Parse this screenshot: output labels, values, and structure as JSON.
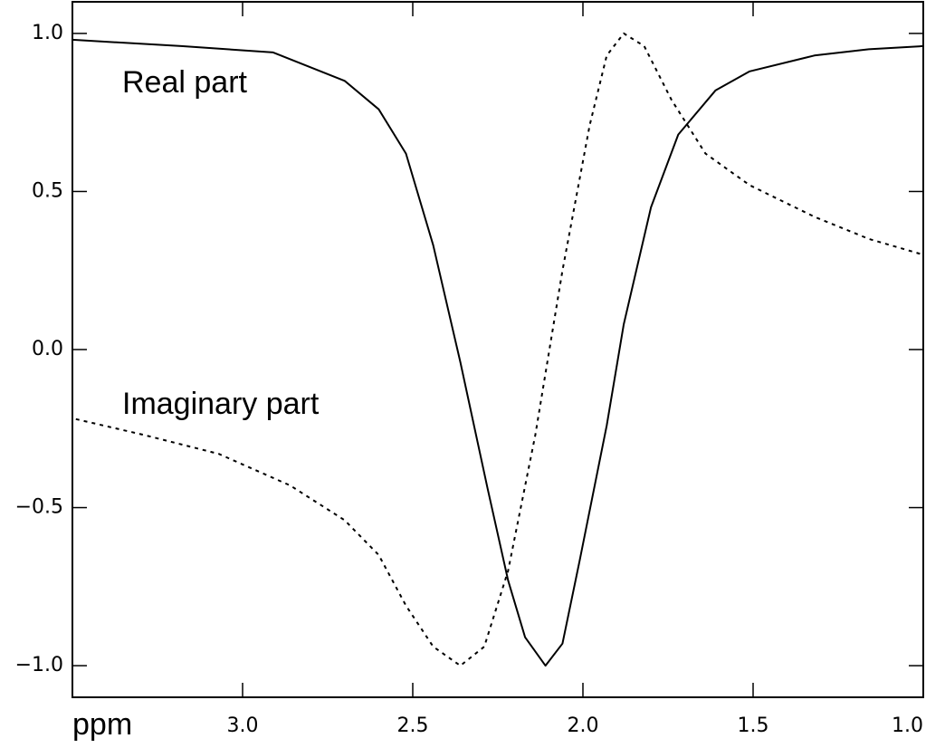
{
  "chart_data": {
    "type": "line",
    "x_label": "ppm",
    "xlim": [
      3.5,
      1.0
    ],
    "xticks": [
      {
        "value": 3,
        "label": "3.0"
      },
      {
        "value": 2.5,
        "label": "2.5"
      },
      {
        "value": 2,
        "label": "2.0"
      },
      {
        "value": 1.5,
        "label": "1.5"
      },
      {
        "value": 1,
        "label": "1.0"
      }
    ],
    "ylim": [
      -1.1,
      1.1
    ],
    "yticks": [
      {
        "value": -1,
        "label": "−1.0"
      },
      {
        "value": -0.5,
        "label": "−0.5"
      },
      {
        "value": 0,
        "label": "0.0"
      },
      {
        "value": 0.5,
        "label": "0.5"
      },
      {
        "value": 1,
        "label": "1.0"
      }
    ],
    "grid": false,
    "series": [
      {
        "name": "Real part",
        "color": "#000000",
        "linestyle": "solid",
        "x": [
          3.5,
          3.18,
          2.91,
          2.7,
          2.6,
          2.52,
          2.44,
          2.36,
          2.28,
          2.22,
          2.17,
          2.11,
          2.06,
          2.01,
          1.93,
          1.88,
          1.8,
          1.72,
          1.61,
          1.51,
          1.32,
          1.16,
          1.0
        ],
        "values": [
          0.98,
          0.96,
          0.94,
          0.85,
          0.76,
          0.62,
          0.33,
          -0.04,
          -0.44,
          -0.73,
          -0.91,
          -1.0,
          -0.93,
          -0.67,
          -0.24,
          0.08,
          0.45,
          0.68,
          0.82,
          0.88,
          0.93,
          0.95,
          0.96
        ]
      },
      {
        "name": "Imaginary part",
        "color": "#000000",
        "linestyle": "dotted",
        "x": [
          3.49,
          3.29,
          3.07,
          2.86,
          2.7,
          2.6,
          2.52,
          2.44,
          2.36,
          2.29,
          2.22,
          2.14,
          2.06,
          1.98,
          1.93,
          1.88,
          1.82,
          1.74,
          1.64,
          1.51,
          1.32,
          1.16,
          1.0
        ],
        "values": [
          -0.22,
          -0.27,
          -0.33,
          -0.43,
          -0.54,
          -0.65,
          -0.81,
          -0.94,
          -1.0,
          -0.94,
          -0.7,
          -0.27,
          0.25,
          0.71,
          0.93,
          1.0,
          0.96,
          0.79,
          0.62,
          0.52,
          0.42,
          0.35,
          0.3
        ]
      }
    ]
  }
}
